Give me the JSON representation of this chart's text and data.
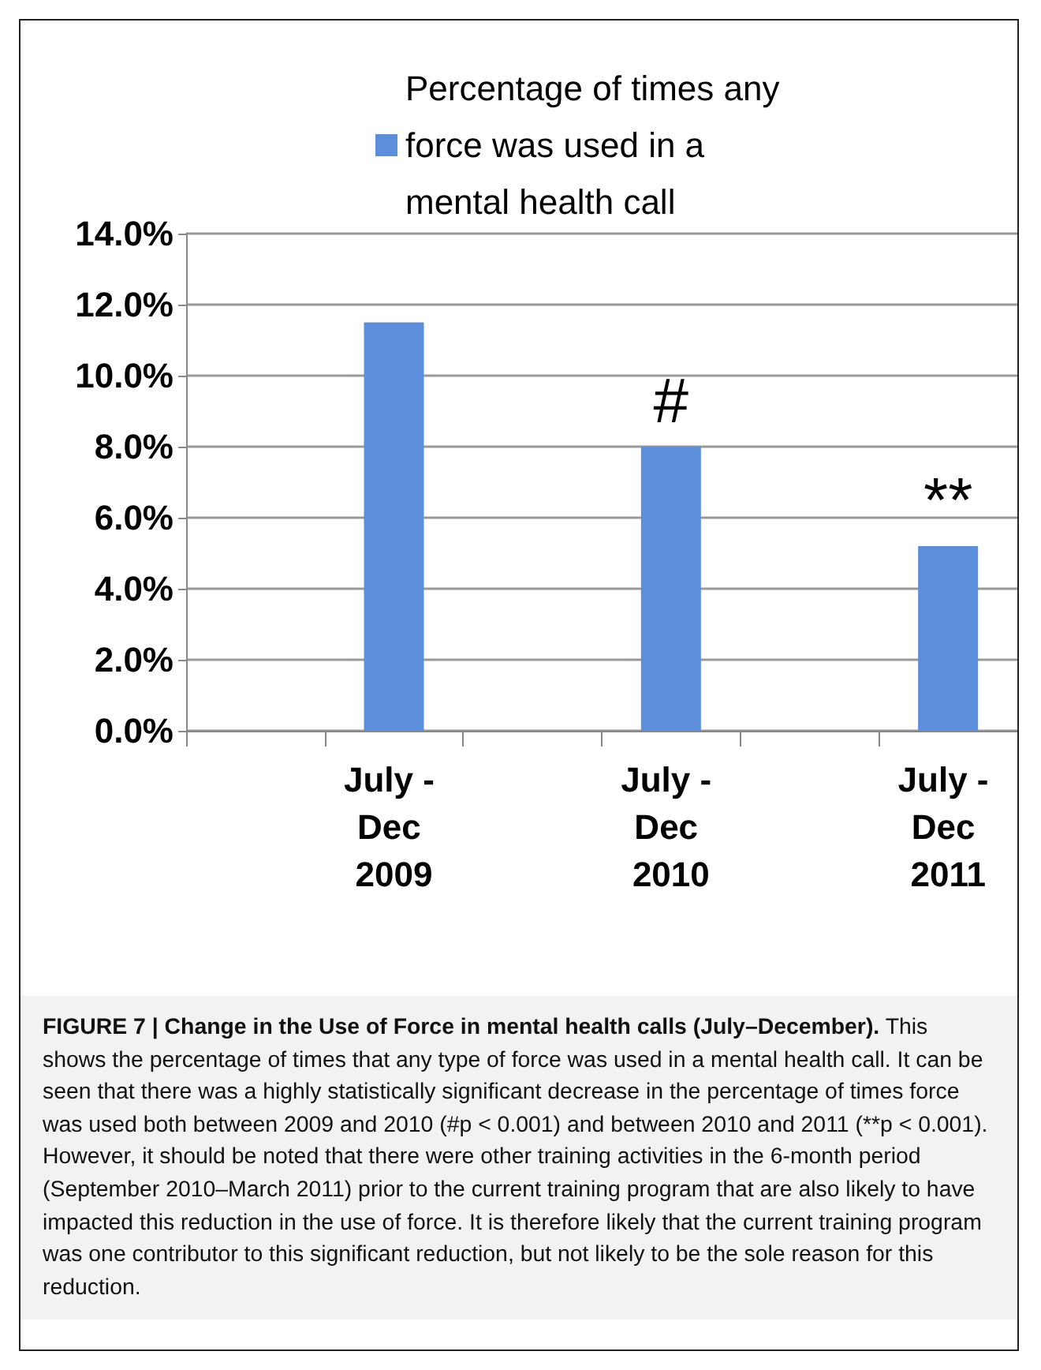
{
  "chart_data": {
    "type": "bar",
    "title": "FIGURE 7 | Change in the Use of Force in mental health calls (July–December).",
    "categories": [
      null,
      "July - Dec 2009",
      null,
      "July - Dec 2010",
      null,
      "July - Dec 2011"
    ],
    "series": [
      {
        "name": "Percentage of times any force was used in a mental health call",
        "color": "#5b8fdc",
        "values": [
          null,
          11.5,
          null,
          8.0,
          null,
          5.2
        ]
      }
    ],
    "ylim": [
      0,
      14
    ],
    "yticks": [
      {
        "value": 0,
        "label": "0.0%"
      },
      {
        "value": 2,
        "label": "2.0%"
      },
      {
        "value": 4,
        "label": "4.0%"
      },
      {
        "value": 6,
        "label": "6.0%"
      },
      {
        "value": 8,
        "label": "8.0%"
      },
      {
        "value": 10,
        "label": "10.0%"
      },
      {
        "value": 12,
        "label": "12.0%"
      },
      {
        "value": 14,
        "label": "14.0%"
      }
    ],
    "grid": "y",
    "legend": "top",
    "annotations": [
      "#",
      "**",
      "This shows the percentage of times that any type of force was used in a mental health call. It can be seen that there was a highly statistically significant decrease in the percentage of times force was used both between 2009 and 2010 (#p < 0.001) and between 2010 and 2011 (**p < 0.001). However, it should be noted that there were other training activities in the 6-month period (September 2010–March 2011) prior to the current training program that are also likely to have impacted this reduction in the use of force. It is therefore likely that the current training program was one contributor to this significant reduction, but not likely to be the sole reason for this reduction."
    ]
  }
}
